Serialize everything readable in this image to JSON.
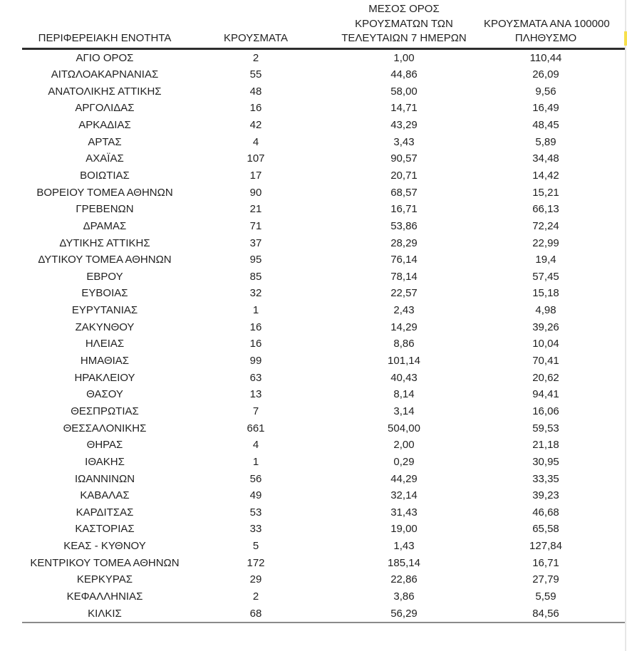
{
  "table": {
    "columns": {
      "region": "ΠΕΡΙΦΕΡΕΙΑΚΗ ΕΝΟΤΗΤΑ",
      "cases": "ΚΡΟΥΣΜΑΤΑ",
      "avg7_line1": "ΜΕΣΟΣ ΟΡΟΣ",
      "avg7_line2": "ΚΡΟΥΣΜΑΤΩΝ ΤΩΝ",
      "avg7_line3": "ΤΕΛΕΥΤΑΙΩΝ 7 ΗΜΕΡΩΝ",
      "per100k_line1": "ΚΡΟΥΣΜΑΤΑ ΑΝΑ 100000",
      "per100k_line2": "ΠΛΗΘΥΣΜΟ"
    },
    "rows": [
      {
        "region": "ΑΓΙΟ ΟΡΟΣ",
        "cases": "2",
        "avg7": "1,00",
        "per100k": "110,44"
      },
      {
        "region": "ΑΙΤΩΛΟΑΚΑΡΝΑΝΙΑΣ",
        "cases": "55",
        "avg7": "44,86",
        "per100k": "26,09"
      },
      {
        "region": "ΑΝΑΤΟΛΙΚΗΣ ΑΤΤΙΚΗΣ",
        "cases": "48",
        "avg7": "58,00",
        "per100k": "9,56"
      },
      {
        "region": "ΑΡΓΟΛΙΔΑΣ",
        "cases": "16",
        "avg7": "14,71",
        "per100k": "16,49"
      },
      {
        "region": "ΑΡΚΑΔΙΑΣ",
        "cases": "42",
        "avg7": "43,29",
        "per100k": "48,45"
      },
      {
        "region": "ΑΡΤΑΣ",
        "cases": "4",
        "avg7": "3,43",
        "per100k": "5,89"
      },
      {
        "region": "ΑΧΑΪΑΣ",
        "cases": "107",
        "avg7": "90,57",
        "per100k": "34,48"
      },
      {
        "region": "ΒΟΙΩΤΙΑΣ",
        "cases": "17",
        "avg7": "20,71",
        "per100k": "14,42"
      },
      {
        "region": "ΒΟΡΕΙΟΥ ΤΟΜΕΑ ΑΘΗΝΩΝ",
        "cases": "90",
        "avg7": "68,57",
        "per100k": "15,21"
      },
      {
        "region": "ΓΡΕΒΕΝΩΝ",
        "cases": "21",
        "avg7": "16,71",
        "per100k": "66,13"
      },
      {
        "region": "ΔΡΑΜΑΣ",
        "cases": "71",
        "avg7": "53,86",
        "per100k": "72,24"
      },
      {
        "region": "ΔΥΤΙΚΗΣ ΑΤΤΙΚΗΣ",
        "cases": "37",
        "avg7": "28,29",
        "per100k": "22,99"
      },
      {
        "region": "ΔΥΤΙΚΟΥ ΤΟΜΕΑ ΑΘΗΝΩΝ",
        "cases": "95",
        "avg7": "76,14",
        "per100k": "19,4"
      },
      {
        "region": "ΕΒΡΟΥ",
        "cases": "85",
        "avg7": "78,14",
        "per100k": "57,45"
      },
      {
        "region": "ΕΥΒΟΙΑΣ",
        "cases": "32",
        "avg7": "22,57",
        "per100k": "15,18"
      },
      {
        "region": "ΕΥΡΥΤΑΝΙΑΣ",
        "cases": "1",
        "avg7": "2,43",
        "per100k": "4,98"
      },
      {
        "region": "ΖΑΚΥΝΘΟΥ",
        "cases": "16",
        "avg7": "14,29",
        "per100k": "39,26"
      },
      {
        "region": "ΗΛΕΙΑΣ",
        "cases": "16",
        "avg7": "8,86",
        "per100k": "10,04"
      },
      {
        "region": "ΗΜΑΘΙΑΣ",
        "cases": "99",
        "avg7": "101,14",
        "per100k": "70,41"
      },
      {
        "region": "ΗΡΑΚΛΕΙΟΥ",
        "cases": "63",
        "avg7": "40,43",
        "per100k": "20,62"
      },
      {
        "region": "ΘΑΣΟΥ",
        "cases": "13",
        "avg7": "8,14",
        "per100k": "94,41"
      },
      {
        "region": "ΘΕΣΠΡΩΤΙΑΣ",
        "cases": "7",
        "avg7": "3,14",
        "per100k": "16,06"
      },
      {
        "region": "ΘΕΣΣΑΛΟΝΙΚΗΣ",
        "cases": "661",
        "avg7": "504,00",
        "per100k": "59,53"
      },
      {
        "region": "ΘΗΡΑΣ",
        "cases": "4",
        "avg7": "2,00",
        "per100k": "21,18"
      },
      {
        "region": "ΙΘΑΚΗΣ",
        "cases": "1",
        "avg7": "0,29",
        "per100k": "30,95"
      },
      {
        "region": "ΙΩΑΝΝΙΝΩΝ",
        "cases": "56",
        "avg7": "44,29",
        "per100k": "33,35"
      },
      {
        "region": "ΚΑΒΑΛΑΣ",
        "cases": "49",
        "avg7": "32,14",
        "per100k": "39,23"
      },
      {
        "region": "ΚΑΡΔΙΤΣΑΣ",
        "cases": "53",
        "avg7": "31,43",
        "per100k": "46,68"
      },
      {
        "region": "ΚΑΣΤΟΡΙΑΣ",
        "cases": "33",
        "avg7": "19,00",
        "per100k": "65,58"
      },
      {
        "region": "ΚΕΑΣ - ΚΥΘΝΟΥ",
        "cases": "5",
        "avg7": "1,43",
        "per100k": "127,84"
      },
      {
        "region": "ΚΕΝΤΡΙΚΟΥ ΤΟΜΕΑ ΑΘΗΝΩΝ",
        "cases": "172",
        "avg7": "185,14",
        "per100k": "16,71"
      },
      {
        "region": "ΚΕΡΚΥΡΑΣ",
        "cases": "29",
        "avg7": "22,86",
        "per100k": "27,79"
      },
      {
        "region": "ΚΕΦΑΛΛΗΝΙΑΣ",
        "cases": "2",
        "avg7": "3,86",
        "per100k": "5,59"
      },
      {
        "region": "ΚΙΛΚΙΣ",
        "cases": "68",
        "avg7": "56,29",
        "per100k": "84,56"
      }
    ]
  },
  "colors": {
    "text": "#222222",
    "header_rule": "#2d2d2d",
    "bottom_rule": "#8a8a8a",
    "highlight": "#f7e04b"
  }
}
